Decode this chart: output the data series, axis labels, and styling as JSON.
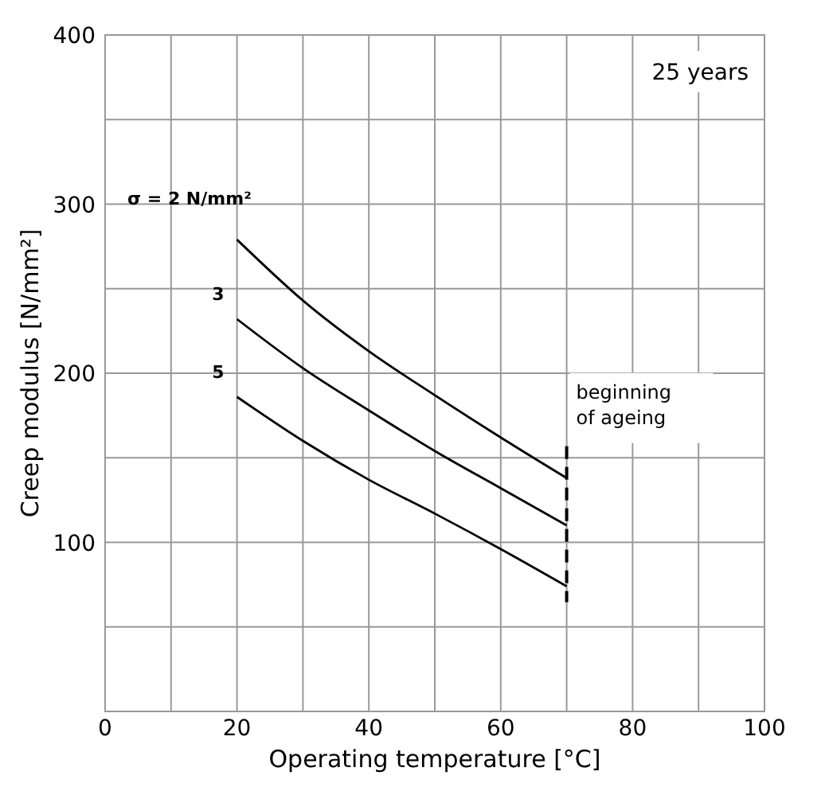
{
  "chart_data": {
    "type": "line",
    "xlabel": "Operating temperature [°C]",
    "ylabel": "Creep modulus [N/mm²]",
    "xlim": [
      0,
      100
    ],
    "ylim": [
      0,
      400
    ],
    "xticks": [
      0,
      {
        "value": 10,
        "label": null
      },
      20,
      {
        "value": 30,
        "label": null
      },
      40,
      {
        "value": 50,
        "label": null
      },
      60,
      {
        "value": 70,
        "label": null
      },
      80,
      {
        "value": 90,
        "label": null
      },
      100
    ],
    "yticks": [
      {
        "value": 0,
        "label": null
      },
      {
        "value": 50,
        "label": null
      },
      100,
      {
        "value": 150,
        "label": null
      },
      200,
      {
        "value": 250,
        "label": null
      },
      300,
      {
        "value": 350,
        "label": null
      },
      400
    ],
    "grid": true,
    "legend": false,
    "marker": "none",
    "line_style": "solid",
    "x": [
      20,
      30,
      40,
      50,
      60,
      70
    ],
    "series": [
      {
        "name": "σ = 2 N/mm²",
        "color": "#000000",
        "values": [
          279,
          243,
          213,
          187,
          162,
          138
        ]
      },
      {
        "name": "3",
        "color": "#000000",
        "values": [
          232,
          203,
          178,
          154,
          132,
          110
        ]
      },
      {
        "name": "5",
        "color": "#000000",
        "values": [
          186,
          160,
          137,
          117,
          96,
          74
        ]
      }
    ],
    "ref_lines": [
      {
        "axis": "x",
        "value": 70,
        "label": "beginning of ageing",
        "color": "#000000",
        "line_style": "dashed"
      }
    ],
    "annotations": [
      "25 years"
    ]
  }
}
